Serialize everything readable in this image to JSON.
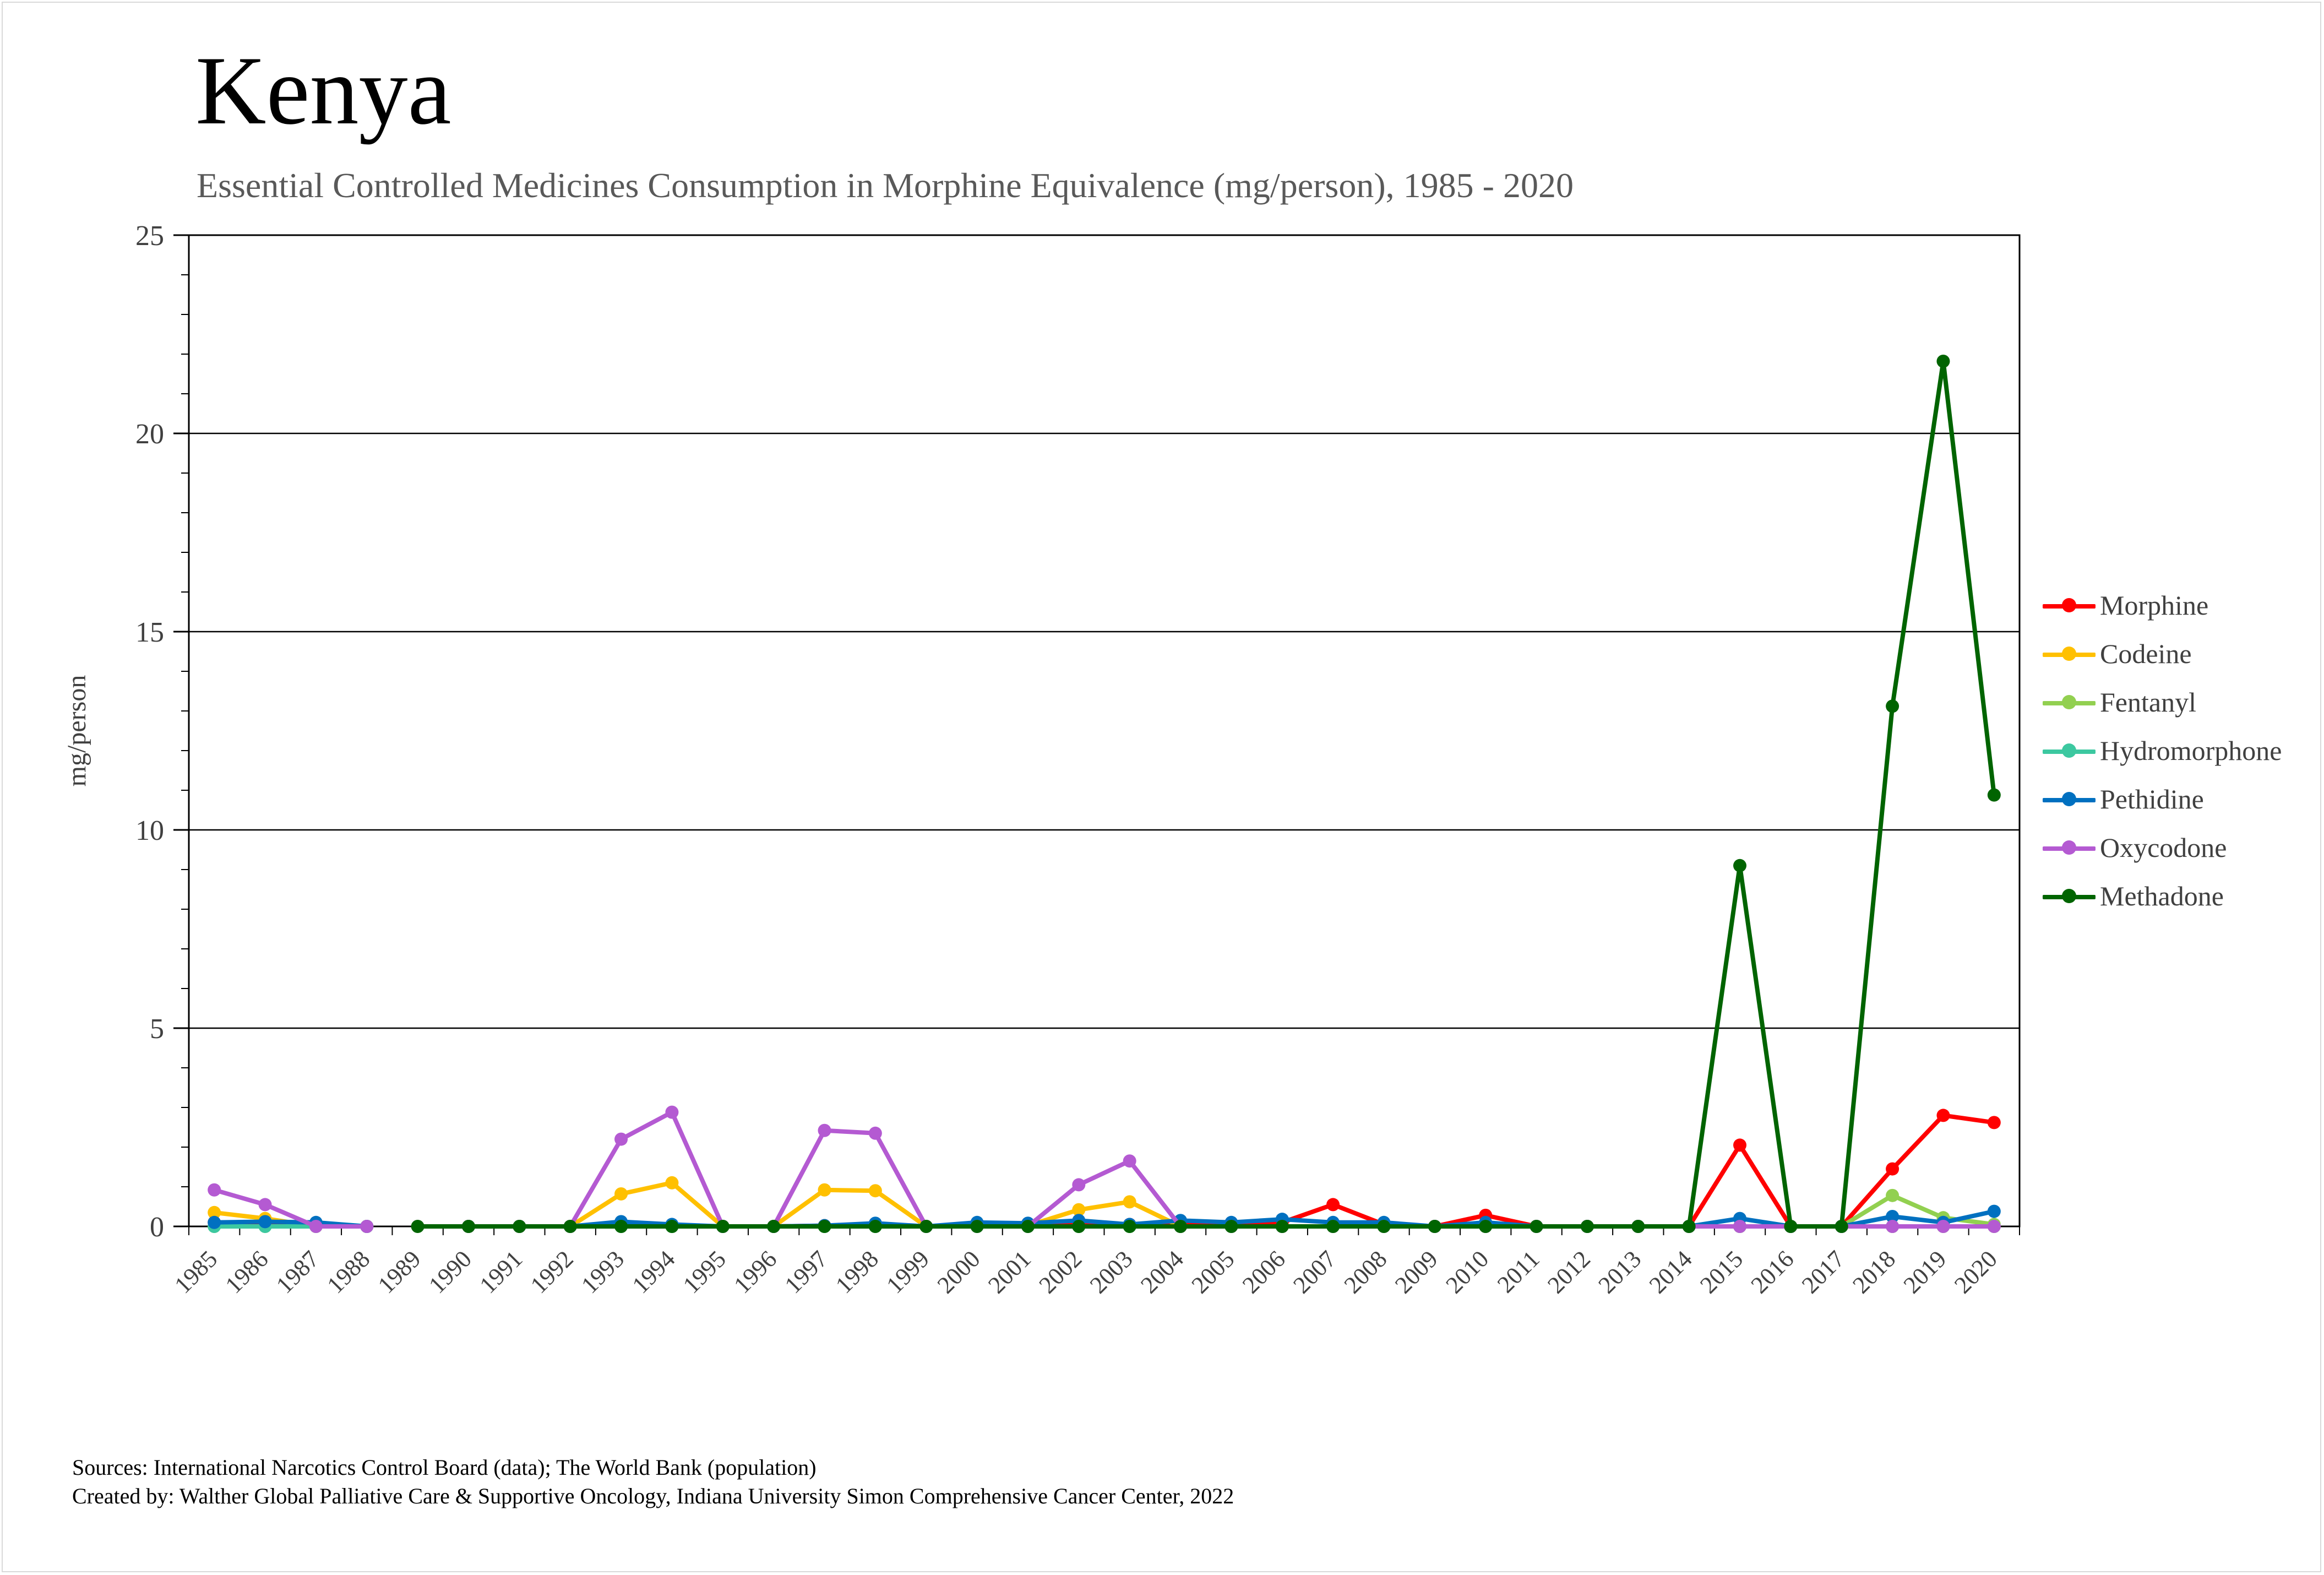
{
  "header": {
    "title": "Kenya",
    "subtitle": "Essential Controlled Medicines Consumption in Morphine Equivalence (mg/person), 1985 - 2020"
  },
  "footer": {
    "sources": "Sources: International Narcotics Control Board (data); The World Bank (population)",
    "created_by": "Created by: Walther Global Palliative Care & Supportive Oncology, Indiana University Simon Comprehensive Cancer Center, 2022"
  },
  "chart_data": {
    "type": "line",
    "title": "Kenya",
    "subtitle": "Essential Controlled Medicines Consumption in Morphine Equivalence (mg/person), 1985 - 2020",
    "xlabel": "",
    "ylabel": "mg/person",
    "ylim": [
      0,
      25
    ],
    "yticks": [
      "0",
      "5",
      "10",
      "15",
      "20",
      "25"
    ],
    "grid": true,
    "legend_position": "right",
    "categories": [
      "1985",
      "1986",
      "1987",
      "1988",
      "1989",
      "1990",
      "1991",
      "1992",
      "1993",
      "1994",
      "1995",
      "1996",
      "1997",
      "1998",
      "1999",
      "2000",
      "2001",
      "2002",
      "2003",
      "2004",
      "2005",
      "2006",
      "2007",
      "2008",
      "2009",
      "2010",
      "2011",
      "2012",
      "2013",
      "2014",
      "2015",
      "2016",
      "2017",
      "2018",
      "2019",
      "2020"
    ],
    "series": [
      {
        "name": "Morphine",
        "color": "#ff0000",
        "values": [
          0.1,
          0.05,
          0.05,
          0,
          null,
          0,
          0,
          0,
          0.05,
          0.02,
          0,
          0,
          0.02,
          0.02,
          0,
          0.05,
          0.05,
          0.1,
          0.05,
          0.1,
          0.05,
          0.1,
          0.55,
          0.05,
          0,
          0.28,
          0,
          0,
          0,
          0,
          2.05,
          0,
          0,
          1.45,
          2.8,
          2.62
        ]
      },
      {
        "name": "Codeine",
        "color": "#ffc000",
        "values": [
          0.35,
          0.2,
          0,
          0,
          null,
          0,
          0,
          0,
          0.82,
          1.1,
          0,
          0,
          0.92,
          0.9,
          0,
          0.02,
          0.02,
          0.42,
          0.62,
          0,
          0,
          0,
          0,
          0,
          0,
          0,
          0,
          0,
          0,
          0,
          0,
          0,
          0,
          0,
          0,
          0
        ]
      },
      {
        "name": "Fentanyl",
        "color": "#92d050",
        "values": [
          0,
          0,
          0,
          0,
          null,
          0,
          0,
          0,
          0,
          0,
          0,
          0,
          0,
          0,
          0,
          0,
          0,
          0,
          0,
          0,
          0,
          0,
          0,
          0,
          0,
          0,
          0,
          0,
          0,
          0,
          0,
          0,
          0,
          0.78,
          0.22,
          0.05
        ]
      },
      {
        "name": "Hydromorphone",
        "color": "#3cc8a0",
        "values": [
          0,
          0,
          0,
          0,
          null,
          0,
          0,
          0,
          0,
          0,
          0,
          0,
          0,
          0,
          0,
          0,
          0,
          0,
          0,
          0,
          0,
          0,
          0,
          0,
          0,
          0,
          0,
          0,
          0,
          0,
          0,
          0,
          0,
          0,
          0,
          0
        ]
      },
      {
        "name": "Pethidine",
        "color": "#0070c0",
        "values": [
          0.1,
          0.12,
          0.1,
          0,
          null,
          0,
          0,
          0,
          0.12,
          0.05,
          0,
          0,
          0.02,
          0.08,
          0,
          0.1,
          0.08,
          0.15,
          0.05,
          0.15,
          0.1,
          0.18,
          0.1,
          0.1,
          0,
          0.1,
          0,
          0,
          0,
          0,
          0.2,
          0,
          0,
          0.25,
          0.1,
          0.38
        ]
      },
      {
        "name": "Oxycodone",
        "color": "#b45ad2",
        "values": [
          0.92,
          0.55,
          0,
          0,
          null,
          0,
          0,
          0,
          2.2,
          2.88,
          0,
          0,
          2.42,
          2.35,
          0,
          0,
          0,
          1.05,
          1.65,
          0,
          0,
          0,
          0,
          0,
          0,
          0,
          0,
          0,
          0,
          0,
          0,
          0,
          0,
          0,
          0,
          0
        ]
      },
      {
        "name": "Methadone",
        "color": "#006400",
        "values": [
          null,
          null,
          null,
          null,
          0,
          0,
          0,
          0,
          0,
          0,
          0,
          0,
          0,
          0,
          0,
          0,
          0,
          0,
          0,
          0,
          0,
          0,
          0,
          0,
          0,
          0,
          0,
          0,
          0,
          0,
          9.1,
          0,
          0,
          13.12,
          21.82,
          10.88
        ]
      }
    ]
  }
}
